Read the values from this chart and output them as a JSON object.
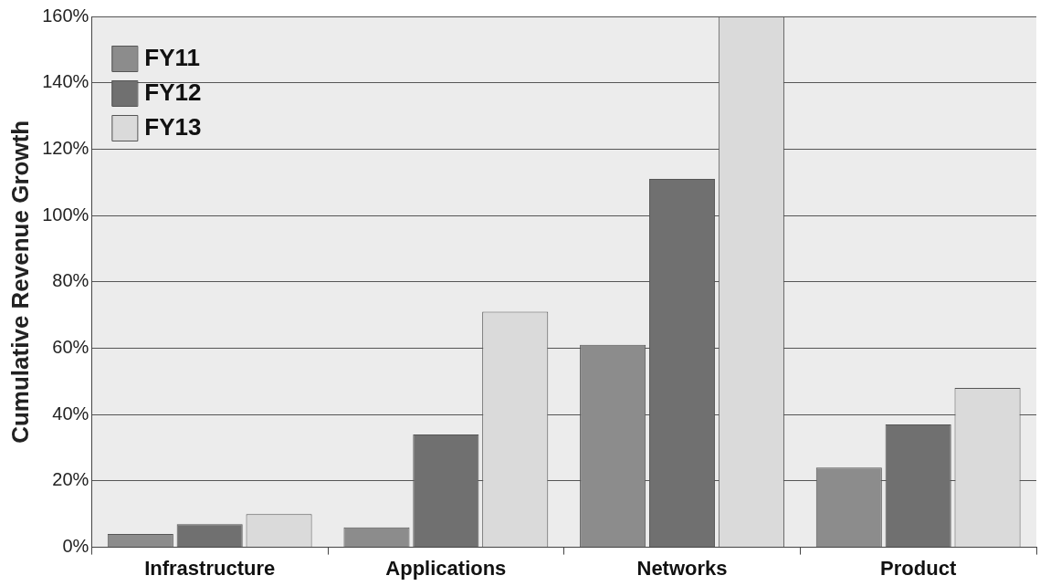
{
  "chart_data": {
    "type": "bar",
    "ylabel": "Cumulative Revenue Growth",
    "categories": [
      "Infrastructure",
      "Applications",
      "Networks",
      "Product"
    ],
    "series": [
      {
        "name": "FY11",
        "color": "#8c8c8c",
        "values": [
          4,
          6,
          61,
          24
        ]
      },
      {
        "name": "FY12",
        "color": "#707070",
        "values": [
          7,
          34,
          111,
          37
        ]
      },
      {
        "name": "FY13",
        "color": "#dadada",
        "values": [
          10,
          71,
          160,
          48
        ]
      }
    ],
    "ylim": [
      0,
      160
    ],
    "yticks": [
      {
        "value": 0,
        "label": "0%"
      },
      {
        "value": 20,
        "label": "20%"
      },
      {
        "value": 40,
        "label": "40%"
      },
      {
        "value": 60,
        "label": "60%"
      },
      {
        "value": 80,
        "label": "80%"
      },
      {
        "value": 100,
        "label": "100%"
      },
      {
        "value": 120,
        "label": "120%"
      },
      {
        "value": 140,
        "label": "140%"
      },
      {
        "value": 160,
        "label": "160%"
      }
    ],
    "grid": "y",
    "legend": "top left"
  }
}
